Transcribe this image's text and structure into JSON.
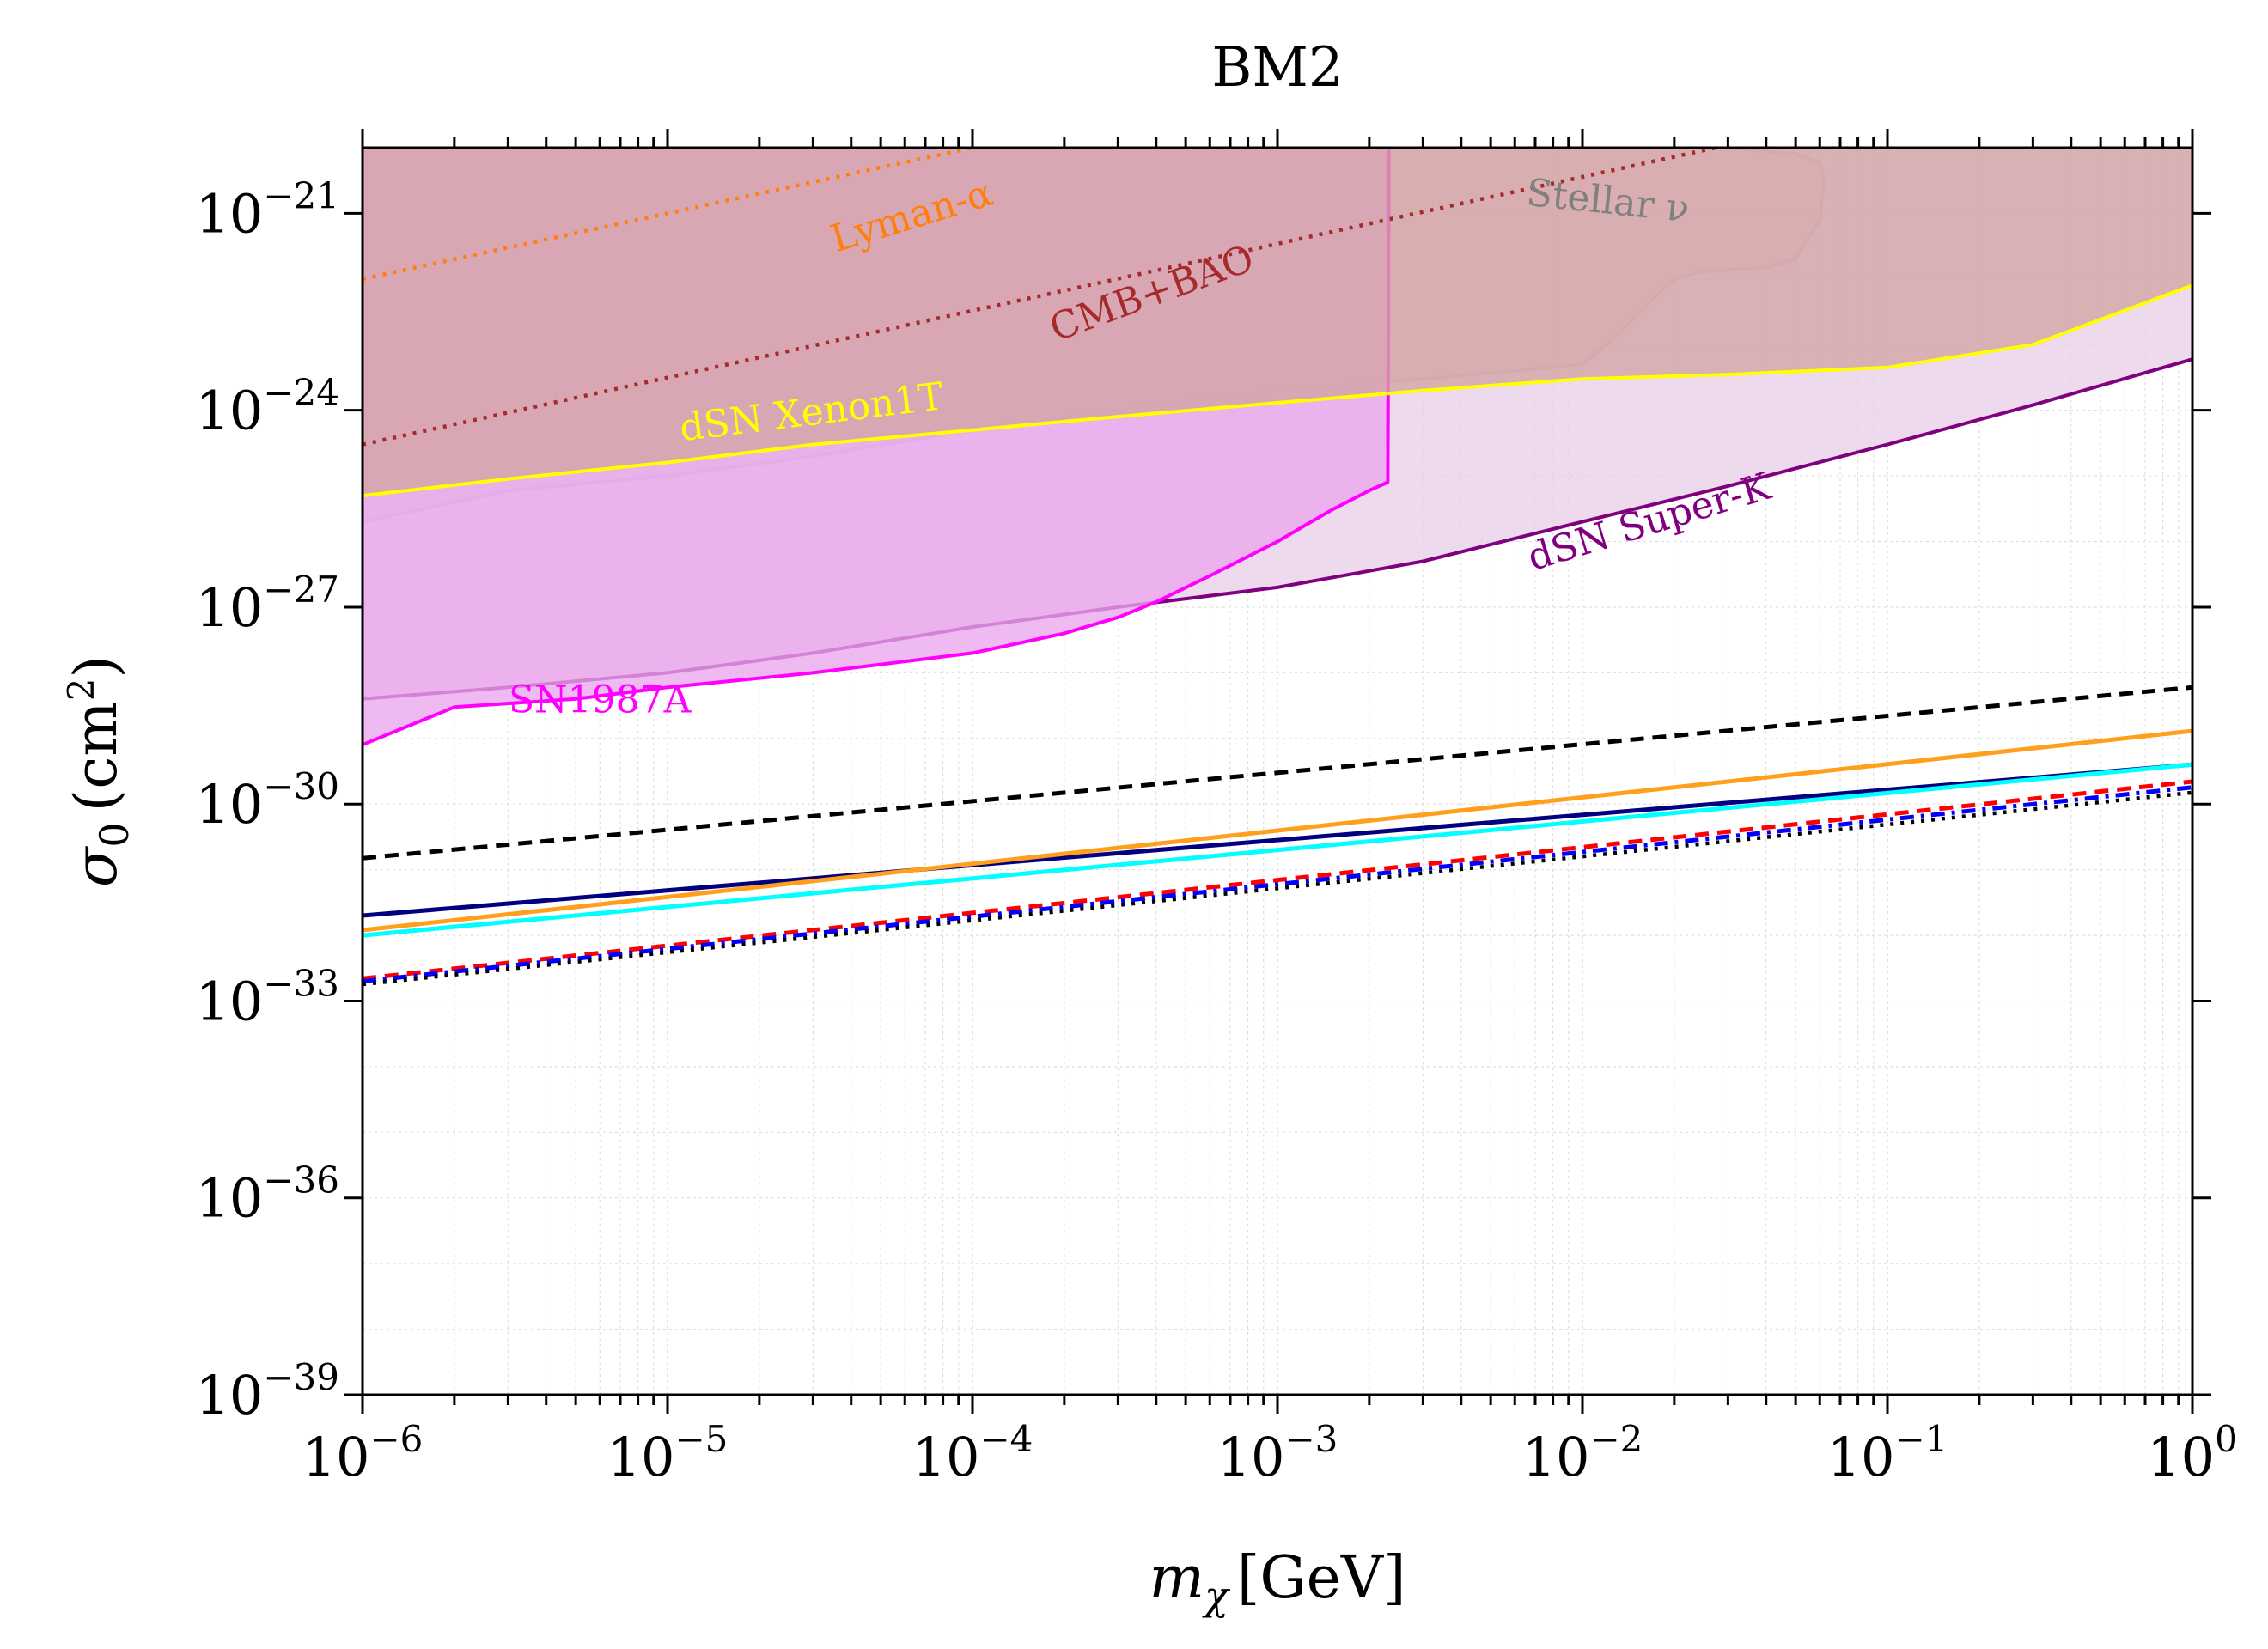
{
  "chart_data": {
    "type": "line",
    "title": "BM2",
    "xlabel": {
      "symbol": "m",
      "sub": "χ",
      "unit": "[GeV]"
    },
    "ylabel": {
      "symbol": "σ",
      "sub": "0",
      "unit": "(cm",
      "unit_sup": "2",
      "unit_close": ")"
    },
    "xscale": "log",
    "yscale": "log",
    "xlim": [
      1e-06,
      1
    ],
    "ylim": [
      1e-39,
      1e-20
    ],
    "grid": true,
    "x_ticks": [
      {
        "base": "10",
        "exp": "−6",
        "value": 1e-06
      },
      {
        "base": "10",
        "exp": "−5",
        "value": 1e-05
      },
      {
        "base": "10",
        "exp": "−4",
        "value": 0.0001
      },
      {
        "base": "10",
        "exp": "−3",
        "value": 0.001
      },
      {
        "base": "10",
        "exp": "−2",
        "value": 0.01
      },
      {
        "base": "10",
        "exp": "−1",
        "value": 0.1
      },
      {
        "base": "10",
        "exp": "0",
        "value": 1
      }
    ],
    "y_ticks": [
      {
        "base": "10",
        "exp": "−21",
        "value": 1e-21
      },
      {
        "base": "10",
        "exp": "−24",
        "value": 1e-24
      },
      {
        "base": "10",
        "exp": "−27",
        "value": 1e-27
      },
      {
        "base": "10",
        "exp": "−30",
        "value": 1e-30
      },
      {
        "base": "10",
        "exp": "−33",
        "value": 1e-33
      },
      {
        "base": "10",
        "exp": "−36",
        "value": 1e-36
      },
      {
        "base": "10",
        "exp": "−39",
        "value": 1e-39
      }
    ],
    "regions": [
      {
        "label": "Stellar ν",
        "color": "#808080",
        "fill": "#e0c49a",
        "x": [
          1e-06,
          3e-06,
          1e-05,
          3e-05,
          0.0001,
          0.0003,
          0.001,
          0.003,
          0.006,
          0.01,
          0.012,
          0.014,
          0.017,
          0.02,
          0.025,
          0.04,
          0.05,
          0.06,
          0.062,
          0.06,
          0.05,
          0.03,
          0.01,
          0.005,
          0.002,
          0.001,
          0.0002,
          4e-05,
          1e-05,
          1e-06
        ],
        "y": [
          2e-26,
          6e-26,
          1e-25,
          2e-25,
          5e-25,
          1e-24,
          2e-24,
          3e-24,
          4e-24,
          5e-24,
          1e-23,
          2e-23,
          5e-23,
          1e-22,
          1.3e-22,
          1.5e-22,
          2e-22,
          8e-22,
          3e-21,
          6e-21,
          8e-21,
          1e-20,
          1.1e-20,
          1.2e-20,
          1.3e-20,
          1.4e-20,
          1.5e-20,
          1.6e-20,
          1.7e-20,
          1.8e-20
        ],
        "fill_to": "top"
      },
      {
        "label": "dSN Super-K",
        "color": "#800080",
        "fill": "#e8d0e8",
        "x": [
          1e-06,
          3e-06,
          1e-05,
          3e-05,
          0.0001,
          0.0003,
          0.001,
          0.003,
          0.01,
          0.03,
          0.1,
          0.3,
          1
        ],
        "y": [
          4e-29,
          6e-29,
          1e-28,
          2e-28,
          5e-28,
          1e-27,
          2e-27,
          5e-27,
          2e-26,
          7e-26,
          3e-25,
          1.2e-24,
          6e-24
        ],
        "fill_to": "top"
      },
      {
        "label": "SN1987A",
        "color": "#ff00ff",
        "fill": "#eaa6ee",
        "x": [
          1e-06,
          2e-06,
          5e-06,
          1e-05,
          3e-05,
          0.0001,
          0.0002,
          0.0003,
          0.0004,
          0.0006,
          0.001,
          0.0015,
          0.002,
          0.0023,
          0.00232
        ],
        "y": [
          8e-30,
          3e-29,
          4e-29,
          6e-29,
          1e-28,
          2e-28,
          4e-28,
          7e-28,
          1.2e-27,
          3e-27,
          1e-26,
          3e-26,
          6e-26,
          8e-26,
          1e-20
        ],
        "fill_to": "top"
      },
      {
        "label": "dSN Xenon1T",
        "color": "#ffff00",
        "fill": "#d3a4a4",
        "x": [
          1e-06,
          3e-06,
          1e-05,
          3e-05,
          0.0001,
          0.0003,
          0.001,
          0.003,
          0.01,
          0.03,
          0.1,
          0.3,
          1
        ],
        "y": [
          5e-26,
          9e-26,
          1.6e-25,
          3e-25,
          5e-25,
          8e-25,
          1.3e-24,
          2e-24,
          3e-24,
          3.5e-24,
          4.5e-24,
          1e-23,
          8e-23
        ],
        "fill_to": "top"
      }
    ],
    "series": [
      {
        "label": "Lyman-α",
        "color": "#ff7f0e",
        "style": "dotted",
        "x": [
          1e-06,
          0.0001
        ],
        "y": [
          1e-22,
          1e-20
        ]
      },
      {
        "label": "CMB+BAO",
        "color": "#a52a2a",
        "style": "dotted",
        "x": [
          1e-06,
          0.03
        ],
        "y": [
          3e-25,
          1.1e-20
        ]
      },
      {
        "color": "#000000",
        "style": "dashed",
        "x": [
          1e-06,
          1
        ],
        "y": [
          1.5e-31,
          6e-29
        ]
      },
      {
        "color": "#000080",
        "style": "solid",
        "x": [
          1e-06,
          1
        ],
        "y": [
          2e-32,
          4e-30
        ]
      },
      {
        "color": "#ff9f1c",
        "style": "solid",
        "x": [
          1e-06,
          1
        ],
        "y": [
          1.2e-32,
          1.3e-29
        ]
      },
      {
        "color": "#00ffff",
        "style": "solid",
        "x": [
          1e-06,
          1
        ],
        "y": [
          1e-32,
          4e-30
        ]
      },
      {
        "color": "#ff0000",
        "style": "dashed",
        "x": [
          1e-06,
          1
        ],
        "y": [
          2.2e-33,
          2.2e-30
        ]
      },
      {
        "color": "#0000ff",
        "style": "dashdot",
        "x": [
          1e-06,
          1
        ],
        "y": [
          2e-33,
          1.8e-30
        ]
      },
      {
        "color": "#000000",
        "style": "dotted",
        "x": [
          1e-06,
          1
        ],
        "y": [
          1.8e-33,
          1.5e-30
        ]
      }
    ],
    "annotations": [
      {
        "text": "Lyman-α",
        "color": "#ff7f0e",
        "x": 6.5e-05,
        "y": 6e-22,
        "angle": -17
      },
      {
        "text": "CMB+BAO",
        "color": "#a52a2a",
        "x": 0.0004,
        "y": 4e-23,
        "angle": -20
      },
      {
        "text": "Stellar ν",
        "color": "#808080",
        "x": 0.012,
        "y": 1e-21,
        "angle": 6
      },
      {
        "text": "dSN Xenon1T",
        "color": "#ffff00",
        "x": 3e-05,
        "y": 6e-25,
        "angle": -7
      },
      {
        "text": "dSN Super-K",
        "color": "#800080",
        "x": 0.017,
        "y": 1.3e-26,
        "angle": -17
      },
      {
        "text": "SN1987A",
        "color": "#ff00ff",
        "x": 6e-06,
        "y": 2.5e-29,
        "angle": 0
      }
    ]
  }
}
